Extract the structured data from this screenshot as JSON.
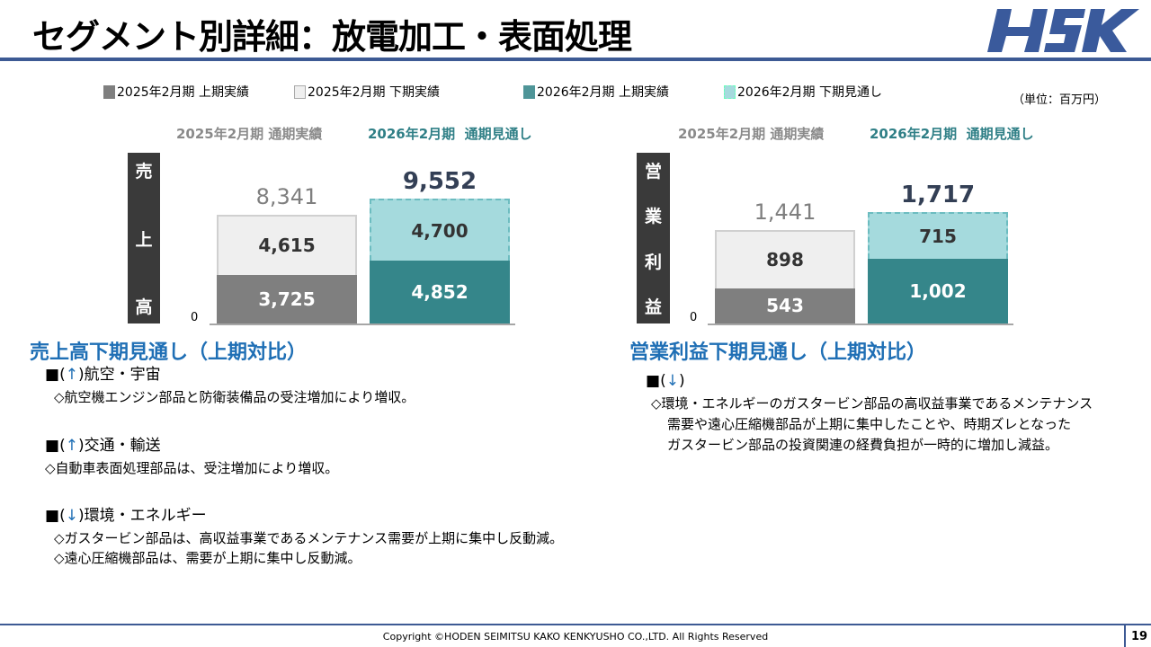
{
  "header": {
    "title": "セグメント別詳細：放電加工・表面処理",
    "logo_text": "HSK"
  },
  "legend": [
    {
      "label": "2025年2月期 上期実績",
      "color": "#7f7f7f"
    },
    {
      "label": "2025年2月期 下期実績",
      "color": "#efefef"
    },
    {
      "label": "2026年2月期 上期実績",
      "color": "#3a8c8f"
    },
    {
      "label": "2026年2月期 下期見通し",
      "color": "#a5dadd"
    }
  ],
  "unit": "（単位：百万円）",
  "chart_data": [
    {
      "type": "bar",
      "stacked": true,
      "title": "売上高",
      "categories": [
        "2025年2月期 通期実績",
        "2026年2月期 通期見通し"
      ],
      "series": [
        {
          "name": "上期",
          "values": [
            3725,
            4852
          ]
        },
        {
          "name": "下期",
          "values": [
            4615,
            4700
          ]
        }
      ],
      "totals": [
        8341,
        9552
      ],
      "value_labels": {
        "h1": [
          "3,725",
          "4,852"
        ],
        "h2": [
          "4,615",
          "4,700"
        ],
        "totals": [
          "8,341",
          "9,552"
        ]
      },
      "cat_parts": [
        [
          "2025年2月期",
          "通期実績"
        ],
        [
          "2026年2月期",
          "通期見通し"
        ]
      ],
      "zero": "0",
      "vlabel": [
        "売",
        "上",
        "高"
      ]
    },
    {
      "type": "bar",
      "stacked": true,
      "title": "営業利益",
      "categories": [
        "2025年2月期 通期実績",
        "2026年2月期 通期見通し"
      ],
      "series": [
        {
          "name": "上期",
          "values": [
            543,
            1002
          ]
        },
        {
          "name": "下期",
          "values": [
            898,
            715
          ]
        }
      ],
      "totals": [
        1441,
        1717
      ],
      "value_labels": {
        "h1": [
          "543",
          "1,002"
        ],
        "h2": [
          "898",
          "715"
        ],
        "totals": [
          "1,441",
          "1,717"
        ]
      },
      "cat_parts": [
        [
          "2025年2月期",
          "通期実績"
        ],
        [
          "2026年2月期",
          "通期見通し"
        ]
      ],
      "zero": "0",
      "vlabel": [
        "営",
        "業",
        "利",
        "益"
      ]
    }
  ],
  "left_text": {
    "heading": "売上高下期見通し（上期対比）",
    "items": [
      {
        "bullet": "■",
        "open": "(",
        "arrow": "↑",
        "close": ")",
        "label": "航空・宇宙",
        "lines": [
          "◇航空機エンジン部品と防衛装備品の受注増加により増収。"
        ]
      },
      {
        "bullet": "■",
        "open": "(",
        "arrow": "↑",
        "close": ")",
        "label": "交通・輸送",
        "lines": [
          "◇自動車表面処理部品は、受注増加により増収。"
        ]
      },
      {
        "bullet": "■",
        "open": "(",
        "arrow": "↓",
        "close": ")",
        "label": "環境・エネルギー",
        "lines": [
          "◇ガスタービン部品は、高収益事業であるメンテナンス需要が上期に集中し反動減。",
          "◇遠心圧縮機部品は、需要が上期に集中し反動減。"
        ]
      }
    ]
  },
  "right_text": {
    "heading": "営業利益下期見通し（上期対比）",
    "item": {
      "bullet": "■",
      "open": "(",
      "arrow": "↓",
      "close": ")",
      "lines": [
        "◇環境・エネルギーのガスタービン部品の高収益事業であるメンテナンス",
        "需要や遠心圧縮機部品が上期に集中したことや、時期ズレとなった",
        "ガスタービン部品の投資関連の経費負担が一時的に増加し減益。"
      ]
    }
  },
  "footer": {
    "copyright": "Copyright ©HODEN SEIMITSU KAKO KENKYUSHO CO.,LTD. All Rights Reserved",
    "page": "19"
  }
}
